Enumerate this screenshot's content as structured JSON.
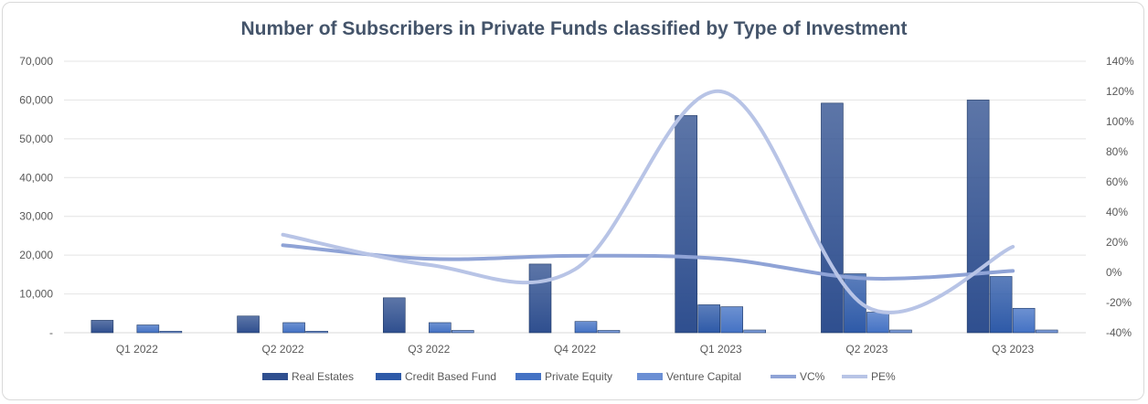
{
  "chart_data": {
    "type": "bar",
    "title": "Number of Subscribers in Private Funds classified by Type of Investment",
    "categories": [
      "Q1 2022",
      "Q2 2022",
      "Q3 2022",
      "Q4 2022",
      "Q1 2023",
      "Q2 2023",
      "Q3 2023"
    ],
    "series": [
      {
        "name": "Real Estates",
        "color": "#2f4f8f",
        "values": [
          3200,
          4300,
          9000,
          17700,
          56000,
          59200,
          60000
        ]
      },
      {
        "name": "Credit Based Fund",
        "color": "#2e5aa8",
        "values": [
          0,
          0,
          0,
          0,
          7200,
          15200,
          14500
        ]
      },
      {
        "name": "Private Equity",
        "color": "#4472c4",
        "values": [
          2000,
          2600,
          2600,
          2900,
          6700,
          5300,
          6300
        ]
      },
      {
        "name": "Venture Capital",
        "color": "#6b8fd4",
        "values": [
          400,
          400,
          600,
          600,
          700,
          700,
          700
        ]
      }
    ],
    "line_series": [
      {
        "name": "VC%",
        "color": "#8fa3d6",
        "values": [
          null,
          18,
          9,
          11,
          9,
          -4,
          1
        ]
      },
      {
        "name": "PE%",
        "color": "#b8c4e6",
        "values": [
          null,
          25,
          5,
          2,
          120,
          -23,
          17
        ]
      }
    ],
    "y_left": {
      "min": 0,
      "max": 70000,
      "step": 10000,
      "tick_labels": [
        "-",
        "10,000",
        "20,000",
        "30,000",
        "40,000",
        "50,000",
        "60,000",
        "70,000"
      ]
    },
    "y_right": {
      "min": -40,
      "max": 140,
      "step": 20,
      "tick_labels": [
        "-40%",
        "-20%",
        "0%",
        "20%",
        "40%",
        "60%",
        "80%",
        "100%",
        "120%",
        "140%"
      ]
    },
    "legend": [
      "Real Estates",
      "Credit Based Fund",
      "Private Equity",
      "Venture Capital",
      "VC%",
      "PE%"
    ],
    "legend_position": "bottom",
    "grid": true
  }
}
